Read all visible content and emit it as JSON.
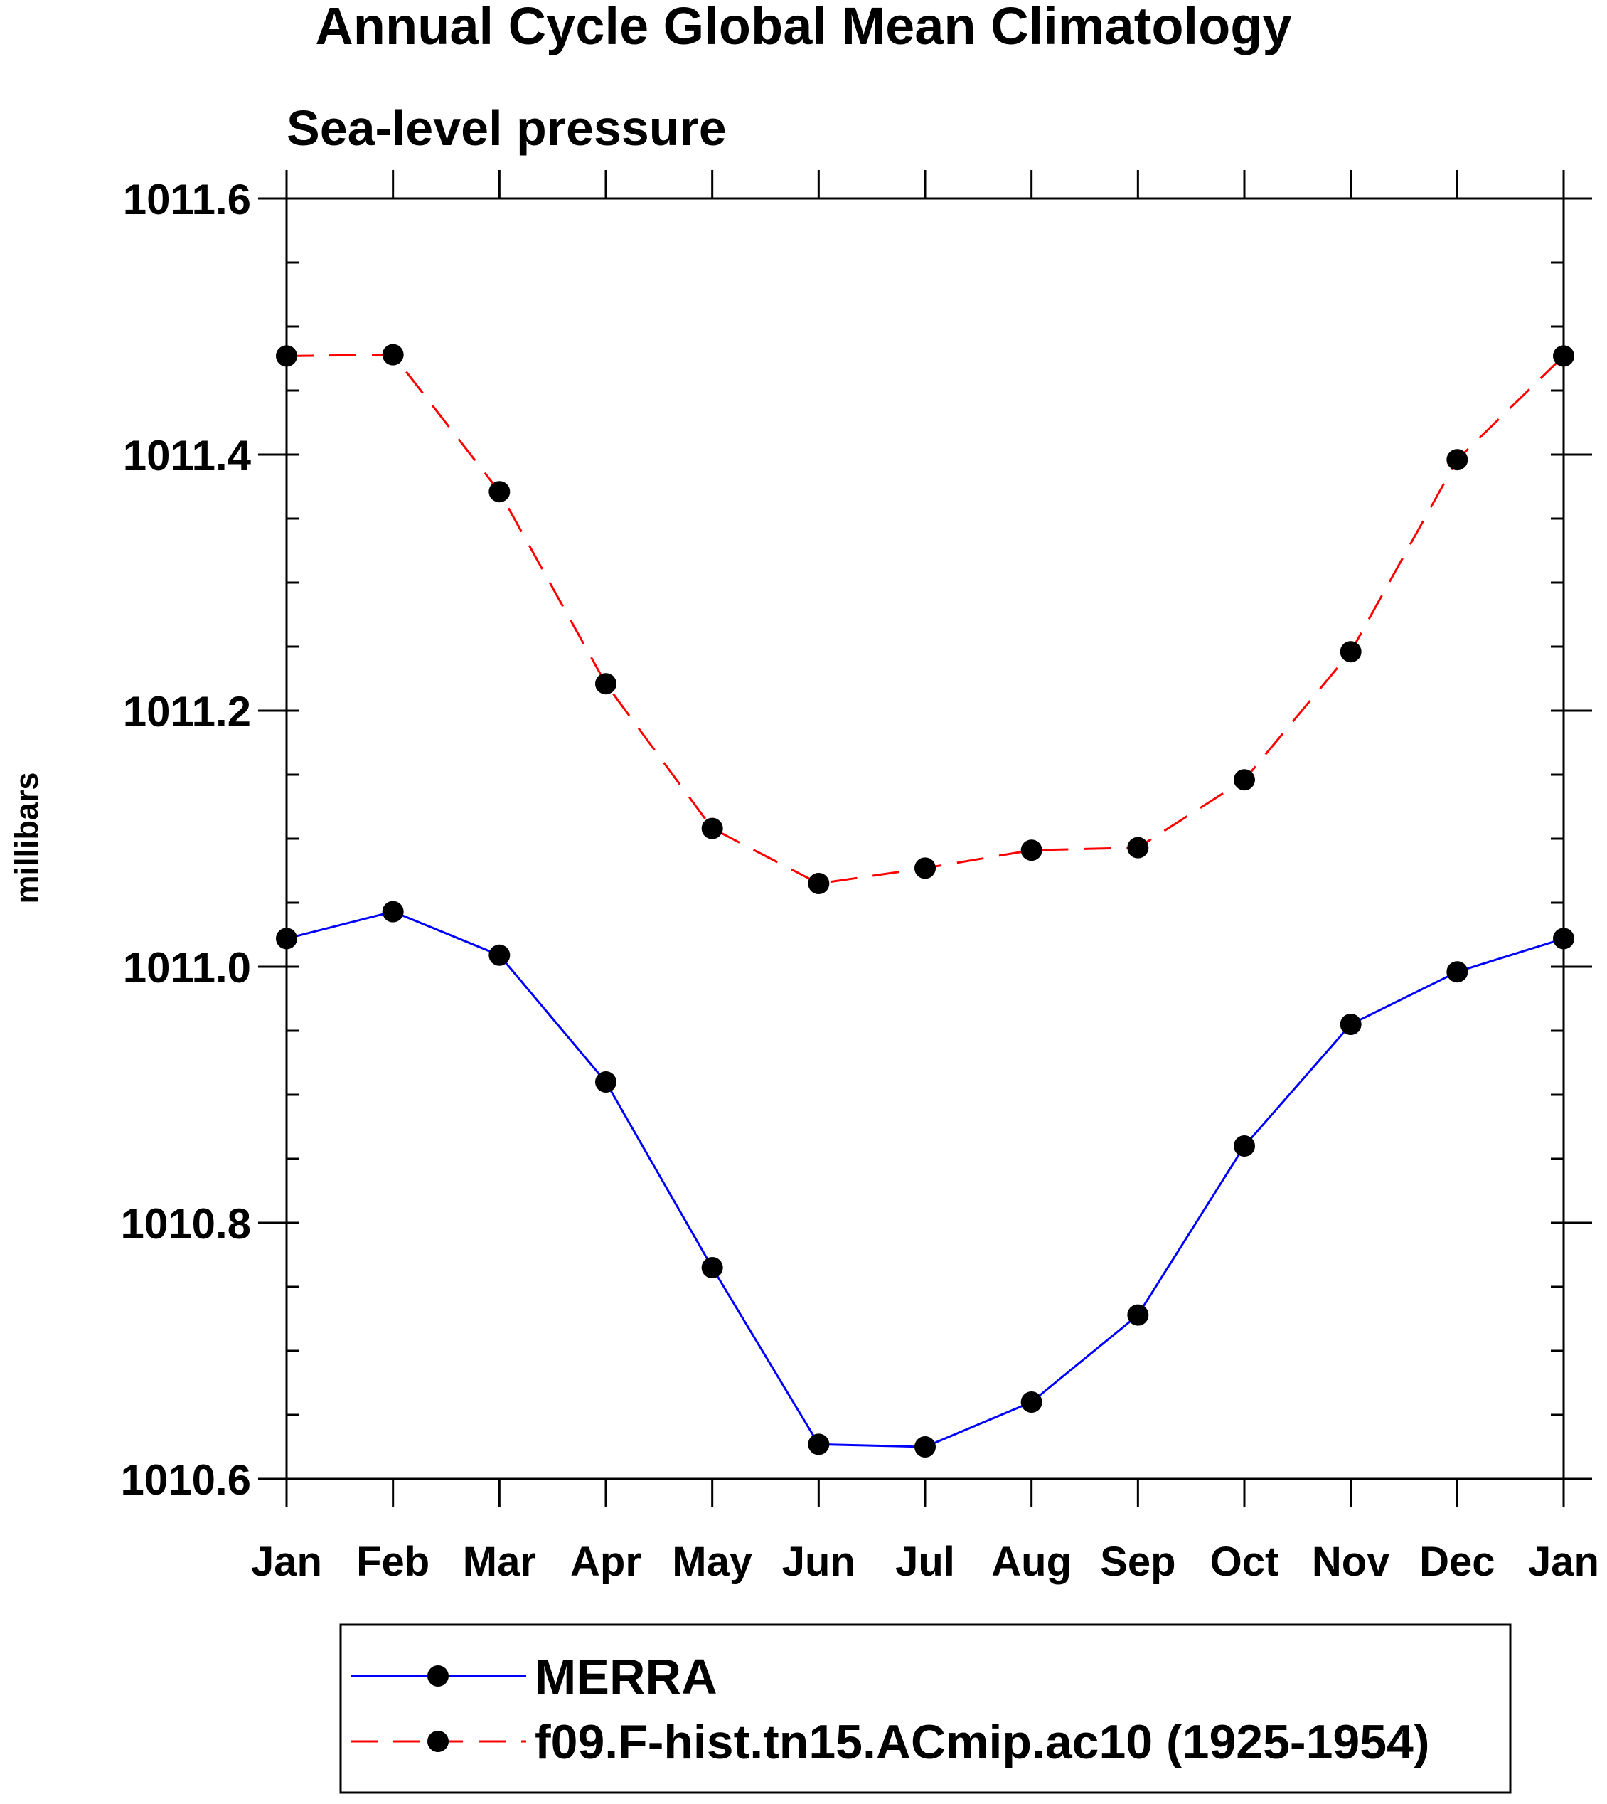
{
  "chart_data": {
    "type": "line",
    "title": "Annual Cycle Global Mean Climatology",
    "subtitle": "Sea-level pressure",
    "xlabel": "",
    "ylabel": "millibars",
    "categories": [
      "Jan",
      "Feb",
      "Mar",
      "Apr",
      "May",
      "Jun",
      "Jul",
      "Aug",
      "Sep",
      "Oct",
      "Nov",
      "Dec",
      "Jan"
    ],
    "ylim": [
      1010.6,
      1011.6
    ],
    "yticks": [
      1010.6,
      1010.8,
      1011.0,
      1011.2,
      1011.4,
      1011.6
    ],
    "ytick_labels": [
      "1010.6",
      "1010.8",
      "1011.0",
      "1011.2",
      "1011.4",
      "1011.6"
    ],
    "y_minor_step": 0.05,
    "grid": false,
    "legend_position": "bottom",
    "series": [
      {
        "name": "MERRA",
        "color": "#0000ff",
        "dash": "solid",
        "marker": "filled-circle",
        "marker_color": "#000000",
        "values": [
          1011.022,
          1011.043,
          1011.009,
          1010.91,
          1010.765,
          1010.627,
          1010.625,
          1010.66,
          1010.728,
          1010.86,
          1010.955,
          1010.996,
          1011.022
        ]
      },
      {
        "name": "f09.F-hist.tn15.ACmip.ac10 (1925-1954)",
        "color": "#ff0000",
        "dash": "dashed",
        "marker": "filled-circle",
        "marker_color": "#000000",
        "values": [
          1011.477,
          1011.478,
          1011.371,
          1011.221,
          1011.108,
          1011.065,
          1011.077,
          1011.091,
          1011.093,
          1011.146,
          1011.246,
          1011.396,
          1011.477
        ]
      }
    ]
  }
}
